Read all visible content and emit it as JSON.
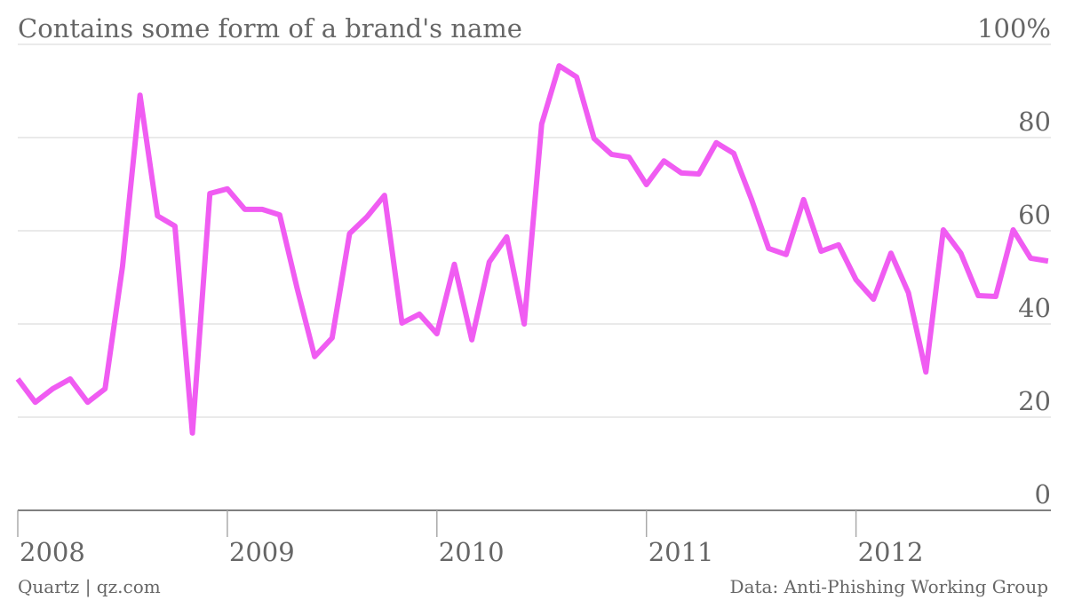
{
  "chart_data": {
    "type": "line",
    "title": "Contains some form of a brand's name",
    "credit": "Quartz | qz.com",
    "source": "Data: Anti-Phishing Working Group",
    "x": [
      "2008-01",
      "2008-02",
      "2008-03",
      "2008-04",
      "2008-05",
      "2008-06",
      "2008-07",
      "2008-08",
      "2008-09",
      "2008-10",
      "2008-11",
      "2008-12",
      "2009-01",
      "2009-02",
      "2009-03",
      "2009-04",
      "2009-05",
      "2009-06",
      "2009-07",
      "2009-08",
      "2009-09",
      "2009-10",
      "2009-11",
      "2009-12",
      "2010-01",
      "2010-02",
      "2010-03",
      "2010-04",
      "2010-05",
      "2010-06",
      "2010-07",
      "2010-08",
      "2010-09",
      "2010-10",
      "2010-11",
      "2010-12",
      "2011-01",
      "2011-02",
      "2011-03",
      "2011-04",
      "2011-05",
      "2011-06",
      "2011-07",
      "2011-08",
      "2011-09",
      "2011-10",
      "2011-11",
      "2011-12",
      "2012-01",
      "2012-02",
      "2012-03",
      "2012-04",
      "2012-05",
      "2012-06",
      "2012-07",
      "2012-08",
      "2012-09",
      "2012-10",
      "2012-11",
      "2012-12"
    ],
    "series": [
      {
        "name": "Contains some form of a brand's name",
        "color": "#f05cf2",
        "values": [
          28.2,
          23.2,
          26.1,
          28.2,
          23.2,
          26.1,
          52.4,
          89.1,
          63.2,
          61,
          16.6,
          68,
          69,
          64.6,
          64.6,
          63.4,
          47.6,
          33,
          37,
          59.4,
          63,
          67.6,
          40.2,
          42.1,
          37.9,
          52.8,
          36.6,
          53.3,
          58.7,
          40,
          82.9,
          95.4,
          93,
          79.8,
          76.4,
          75.8,
          69.9,
          75,
          72.4,
          72.2,
          78.9,
          76.6,
          66.9,
          56.2,
          54.9,
          66.7,
          55.6,
          57,
          49.5,
          45.3,
          55.2,
          46.7,
          29.7,
          60.2,
          55.2,
          46.1,
          45.9,
          60.2,
          54.1,
          53.5
        ]
      }
    ],
    "xlim": [
      2008,
      2012.93
    ],
    "xticks": [
      2008,
      2009,
      2010,
      2011,
      2012
    ],
    "ylim": [
      0,
      100
    ],
    "yticks": [
      0,
      20,
      40,
      60,
      80,
      {
        "value": 100,
        "label": "100%"
      }
    ],
    "grid": true
  }
}
